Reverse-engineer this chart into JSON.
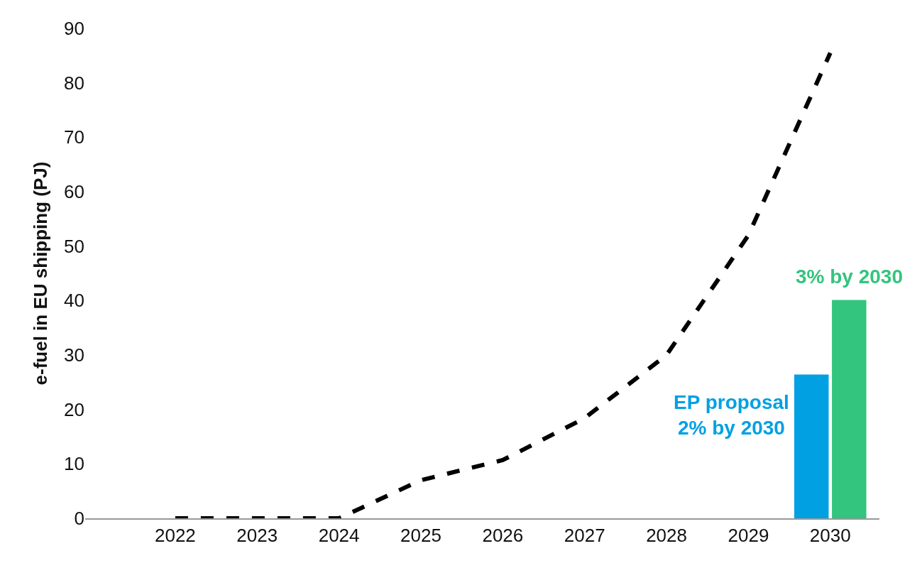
{
  "chart_data": {
    "type": "line",
    "ylabel": "e-fuel in EU shipping (PJ)",
    "categories": [
      "2022",
      "2023",
      "2024",
      "2025",
      "2026",
      "2027",
      "2028",
      "2029",
      "2030"
    ],
    "series": [
      {
        "color": "#000000",
        "line_style": "dashed",
        "values": [
          0,
          0,
          0,
          7,
          10.7,
          18.4,
          30,
          52,
          85.5
        ]
      },
      {
        "type": "bar",
        "name": "EP proposal\n2% by 2030",
        "color": "#00a0e3",
        "values": [
          null,
          null,
          null,
          null,
          null,
          null,
          null,
          null,
          26.4
        ]
      },
      {
        "type": "bar",
        "name": "3% by 2030",
        "color": "#33c47d",
        "values": [
          null,
          null,
          null,
          null,
          null,
          null,
          null,
          null,
          40.1
        ]
      }
    ],
    "ylim": [
      0,
      90
    ],
    "yticks": [
      0,
      10,
      20,
      30,
      40,
      50,
      60,
      70,
      80,
      90
    ],
    "marker": "none"
  }
}
